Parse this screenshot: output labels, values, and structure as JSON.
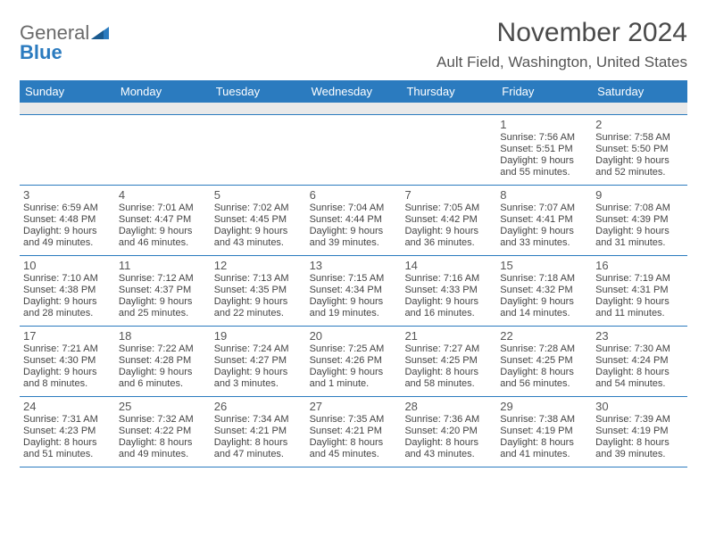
{
  "logo": {
    "text1": "General",
    "text2": "Blue"
  },
  "title": "November 2024",
  "location": "Ault Field, Washington, United States",
  "colors": {
    "header_bg": "#2b7bbf",
    "header_text": "#ffffff",
    "sub_bg": "#e9e9e9",
    "border": "#2b7bbf",
    "logo_gray": "#6a6a6a",
    "logo_blue": "#2b7bbf"
  },
  "day_headers": [
    "Sunday",
    "Monday",
    "Tuesday",
    "Wednesday",
    "Thursday",
    "Friday",
    "Saturday"
  ],
  "weeks": [
    [
      {
        "num": "",
        "sunrise": "",
        "sunset": "",
        "daylight": ""
      },
      {
        "num": "",
        "sunrise": "",
        "sunset": "",
        "daylight": ""
      },
      {
        "num": "",
        "sunrise": "",
        "sunset": "",
        "daylight": ""
      },
      {
        "num": "",
        "sunrise": "",
        "sunset": "",
        "daylight": ""
      },
      {
        "num": "",
        "sunrise": "",
        "sunset": "",
        "daylight": ""
      },
      {
        "num": "1",
        "sunrise": "Sunrise: 7:56 AM",
        "sunset": "Sunset: 5:51 PM",
        "daylight": "Daylight: 9 hours and 55 minutes."
      },
      {
        "num": "2",
        "sunrise": "Sunrise: 7:58 AM",
        "sunset": "Sunset: 5:50 PM",
        "daylight": "Daylight: 9 hours and 52 minutes."
      }
    ],
    [
      {
        "num": "3",
        "sunrise": "Sunrise: 6:59 AM",
        "sunset": "Sunset: 4:48 PM",
        "daylight": "Daylight: 9 hours and 49 minutes."
      },
      {
        "num": "4",
        "sunrise": "Sunrise: 7:01 AM",
        "sunset": "Sunset: 4:47 PM",
        "daylight": "Daylight: 9 hours and 46 minutes."
      },
      {
        "num": "5",
        "sunrise": "Sunrise: 7:02 AM",
        "sunset": "Sunset: 4:45 PM",
        "daylight": "Daylight: 9 hours and 43 minutes."
      },
      {
        "num": "6",
        "sunrise": "Sunrise: 7:04 AM",
        "sunset": "Sunset: 4:44 PM",
        "daylight": "Daylight: 9 hours and 39 minutes."
      },
      {
        "num": "7",
        "sunrise": "Sunrise: 7:05 AM",
        "sunset": "Sunset: 4:42 PM",
        "daylight": "Daylight: 9 hours and 36 minutes."
      },
      {
        "num": "8",
        "sunrise": "Sunrise: 7:07 AM",
        "sunset": "Sunset: 4:41 PM",
        "daylight": "Daylight: 9 hours and 33 minutes."
      },
      {
        "num": "9",
        "sunrise": "Sunrise: 7:08 AM",
        "sunset": "Sunset: 4:39 PM",
        "daylight": "Daylight: 9 hours and 31 minutes."
      }
    ],
    [
      {
        "num": "10",
        "sunrise": "Sunrise: 7:10 AM",
        "sunset": "Sunset: 4:38 PM",
        "daylight": "Daylight: 9 hours and 28 minutes."
      },
      {
        "num": "11",
        "sunrise": "Sunrise: 7:12 AM",
        "sunset": "Sunset: 4:37 PM",
        "daylight": "Daylight: 9 hours and 25 minutes."
      },
      {
        "num": "12",
        "sunrise": "Sunrise: 7:13 AM",
        "sunset": "Sunset: 4:35 PM",
        "daylight": "Daylight: 9 hours and 22 minutes."
      },
      {
        "num": "13",
        "sunrise": "Sunrise: 7:15 AM",
        "sunset": "Sunset: 4:34 PM",
        "daylight": "Daylight: 9 hours and 19 minutes."
      },
      {
        "num": "14",
        "sunrise": "Sunrise: 7:16 AM",
        "sunset": "Sunset: 4:33 PM",
        "daylight": "Daylight: 9 hours and 16 minutes."
      },
      {
        "num": "15",
        "sunrise": "Sunrise: 7:18 AM",
        "sunset": "Sunset: 4:32 PM",
        "daylight": "Daylight: 9 hours and 14 minutes."
      },
      {
        "num": "16",
        "sunrise": "Sunrise: 7:19 AM",
        "sunset": "Sunset: 4:31 PM",
        "daylight": "Daylight: 9 hours and 11 minutes."
      }
    ],
    [
      {
        "num": "17",
        "sunrise": "Sunrise: 7:21 AM",
        "sunset": "Sunset: 4:30 PM",
        "daylight": "Daylight: 9 hours and 8 minutes."
      },
      {
        "num": "18",
        "sunrise": "Sunrise: 7:22 AM",
        "sunset": "Sunset: 4:28 PM",
        "daylight": "Daylight: 9 hours and 6 minutes."
      },
      {
        "num": "19",
        "sunrise": "Sunrise: 7:24 AM",
        "sunset": "Sunset: 4:27 PM",
        "daylight": "Daylight: 9 hours and 3 minutes."
      },
      {
        "num": "20",
        "sunrise": "Sunrise: 7:25 AM",
        "sunset": "Sunset: 4:26 PM",
        "daylight": "Daylight: 9 hours and 1 minute."
      },
      {
        "num": "21",
        "sunrise": "Sunrise: 7:27 AM",
        "sunset": "Sunset: 4:25 PM",
        "daylight": "Daylight: 8 hours and 58 minutes."
      },
      {
        "num": "22",
        "sunrise": "Sunrise: 7:28 AM",
        "sunset": "Sunset: 4:25 PM",
        "daylight": "Daylight: 8 hours and 56 minutes."
      },
      {
        "num": "23",
        "sunrise": "Sunrise: 7:30 AM",
        "sunset": "Sunset: 4:24 PM",
        "daylight": "Daylight: 8 hours and 54 minutes."
      }
    ],
    [
      {
        "num": "24",
        "sunrise": "Sunrise: 7:31 AM",
        "sunset": "Sunset: 4:23 PM",
        "daylight": "Daylight: 8 hours and 51 minutes."
      },
      {
        "num": "25",
        "sunrise": "Sunrise: 7:32 AM",
        "sunset": "Sunset: 4:22 PM",
        "daylight": "Daylight: 8 hours and 49 minutes."
      },
      {
        "num": "26",
        "sunrise": "Sunrise: 7:34 AM",
        "sunset": "Sunset: 4:21 PM",
        "daylight": "Daylight: 8 hours and 47 minutes."
      },
      {
        "num": "27",
        "sunrise": "Sunrise: 7:35 AM",
        "sunset": "Sunset: 4:21 PM",
        "daylight": "Daylight: 8 hours and 45 minutes."
      },
      {
        "num": "28",
        "sunrise": "Sunrise: 7:36 AM",
        "sunset": "Sunset: 4:20 PM",
        "daylight": "Daylight: 8 hours and 43 minutes."
      },
      {
        "num": "29",
        "sunrise": "Sunrise: 7:38 AM",
        "sunset": "Sunset: 4:19 PM",
        "daylight": "Daylight: 8 hours and 41 minutes."
      },
      {
        "num": "30",
        "sunrise": "Sunrise: 7:39 AM",
        "sunset": "Sunset: 4:19 PM",
        "daylight": "Daylight: 8 hours and 39 minutes."
      }
    ]
  ]
}
